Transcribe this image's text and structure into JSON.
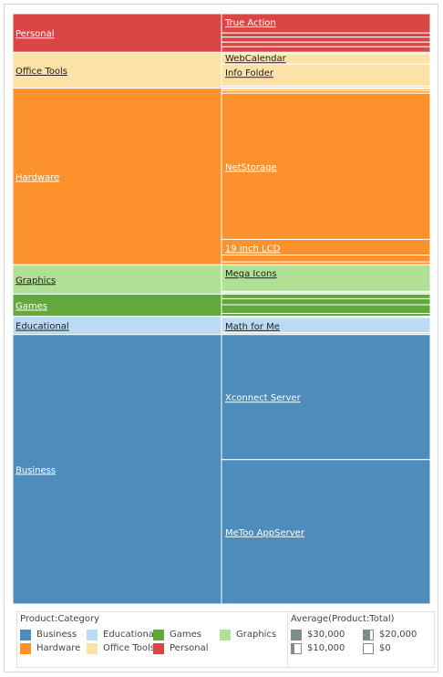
{
  "chart_data": {
    "type": "treemap",
    "colorLegendTitle": "Product:Category",
    "sizeLegendTitle": "Average(Product:Total)",
    "colors": {
      "Business": "#4e8cbc",
      "Educational": "#bbdaf3",
      "Games": "#62a83d",
      "Graphics": "#b0e094",
      "Hardware": "#fd922c",
      "Office Tools": "#fde2a8",
      "Personal": "#d84646"
    },
    "categories": [
      {
        "name": "Personal",
        "total": 4200,
        "items": [
          {
            "label": "True Action",
            "value": 2100
          },
          {
            "label": "",
            "value": 450
          },
          {
            "label": "",
            "value": 550
          },
          {
            "label": "",
            "value": 500
          },
          {
            "label": "",
            "value": 600
          }
        ]
      },
      {
        "name": "Office Tools",
        "total": 3900,
        "items": [
          {
            "label": "",
            "value": 180
          },
          {
            "label": "WebCalendar",
            "value": 1100
          },
          {
            "label": "Info Folder",
            "value": 2400
          },
          {
            "label": "",
            "value": 220
          }
        ]
      },
      {
        "name": "Hardware",
        "total": 19200,
        "items": [
          {
            "label": "",
            "value": 120
          },
          {
            "label": "",
            "value": 180
          },
          {
            "label": "",
            "value": 250
          },
          {
            "label": "NetStorage",
            "value": 15900
          },
          {
            "label": "19 inch LCD",
            "value": 1700
          },
          {
            "label": "",
            "value": 750
          },
          {
            "label": "",
            "value": 300
          }
        ]
      },
      {
        "name": "Graphics",
        "total": 3200,
        "items": [
          {
            "label": "Mega Icons",
            "value": 2900
          },
          {
            "label": "",
            "value": 150
          },
          {
            "label": "",
            "value": 150
          }
        ]
      },
      {
        "name": "Games",
        "total": 2400,
        "items": [
          {
            "label": "",
            "value": 500
          },
          {
            "label": "",
            "value": 650
          },
          {
            "label": "",
            "value": 950
          },
          {
            "label": "",
            "value": 300
          }
        ]
      },
      {
        "name": "Educational",
        "total": 2000,
        "items": [
          {
            "label": "",
            "value": 130
          },
          {
            "label": "Math for Me",
            "value": 1670
          },
          {
            "label": "",
            "value": 200
          }
        ]
      },
      {
        "name": "Business",
        "total": 29300,
        "items": [
          {
            "label": "Xconnect Server",
            "value": 13600
          },
          {
            "label": "MeToo AppServer",
            "value": 15700
          }
        ]
      }
    ],
    "legend": {
      "categories": [
        "Business",
        "Educational",
        "Games",
        "Graphics",
        "Hardware",
        "Office Tools",
        "Personal"
      ],
      "sizes": [
        {
          "label": "$30,000",
          "level": 1.0
        },
        {
          "label": "$20,000",
          "level": 0.67
        },
        {
          "label": "$10,000",
          "level": 0.33
        },
        {
          "label": "$0",
          "level": 0.0
        }
      ]
    }
  }
}
